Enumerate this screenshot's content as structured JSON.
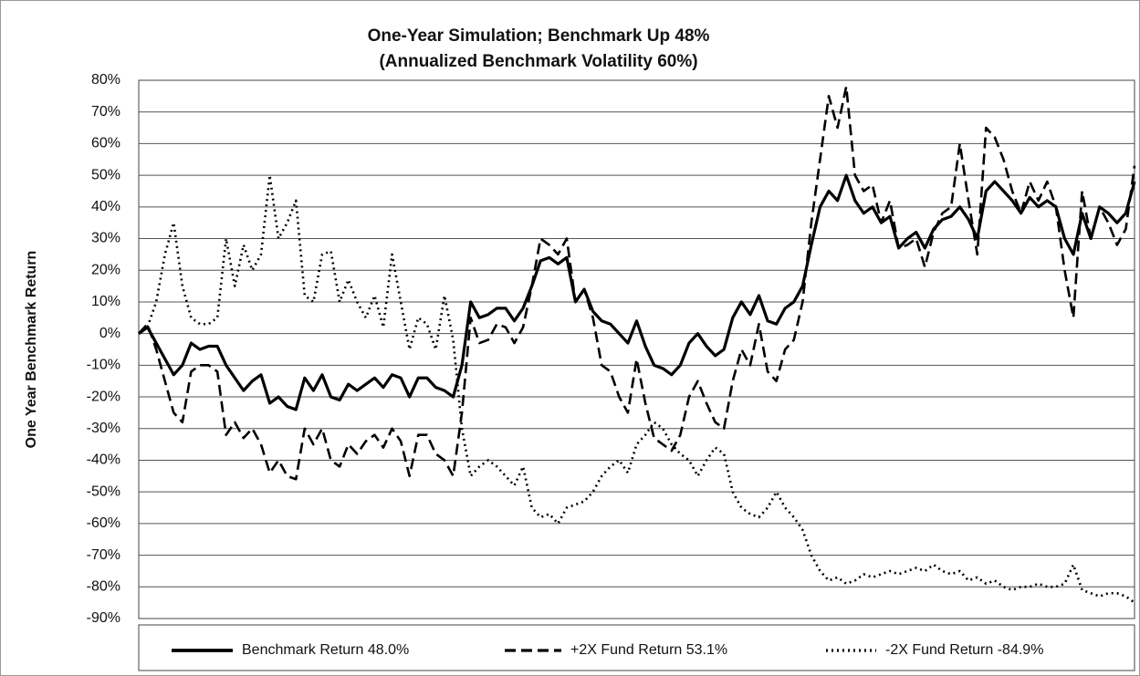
{
  "chart_data": {
    "type": "line",
    "title": "One-Year Simulation; Benchmark Up 48%",
    "subtitle": "(Annualized Benchmark Volatility 60%)",
    "ylabel": "One Year Benchmark Return",
    "ylim": [
      -90,
      80
    ],
    "yticks": [
      {
        "value": 80,
        "label": "80%"
      },
      {
        "value": 70,
        "label": "70%"
      },
      {
        "value": 60,
        "label": "60%"
      },
      {
        "value": 50,
        "label": "50%"
      },
      {
        "value": 40,
        "label": "40%"
      },
      {
        "value": 30,
        "label": "30%"
      },
      {
        "value": 20,
        "label": "20%"
      },
      {
        "value": 10,
        "label": "10%"
      },
      {
        "value": 0,
        "label": "0%"
      },
      {
        "value": -10,
        "label": "-10%"
      },
      {
        "value": -20,
        "label": "-20%"
      },
      {
        "value": -30,
        "label": "-30%"
      },
      {
        "value": -40,
        "label": "-40%"
      },
      {
        "value": -50,
        "label": "-50%"
      },
      {
        "value": -60,
        "label": "-60%"
      },
      {
        "value": -70,
        "label": "-70%"
      },
      {
        "value": -80,
        "label": "-80%"
      },
      {
        "value": -90,
        "label": "-90%"
      }
    ],
    "grid": true,
    "legend": "bottom",
    "series": [
      {
        "name": "Benchmark Return 48.0%",
        "color": "#000000",
        "dash": "solid",
        "values": [
          0,
          2,
          -3,
          -8,
          -13,
          -10,
          -3,
          -5,
          -4,
          -4,
          -10,
          -14,
          -18,
          -15,
          -13,
          -22,
          -20,
          -23,
          -24,
          -14,
          -18,
          -13,
          -20,
          -21,
          -16,
          -18,
          -16,
          -14,
          -17,
          -13,
          -14,
          -20,
          -14,
          -14,
          -17,
          -18,
          -20,
          -10,
          10,
          5,
          6,
          8,
          8,
          4,
          8,
          15,
          23,
          24,
          22,
          24,
          10,
          14,
          7,
          4,
          3,
          0,
          -3,
          4,
          -4,
          -10,
          -11,
          -13,
          -10,
          -3,
          0,
          -4,
          -7,
          -5,
          5,
          10,
          6,
          12,
          4,
          3,
          8,
          10,
          15,
          28,
          40,
          45,
          42,
          50,
          42,
          38,
          40,
          35,
          37,
          27,
          30,
          32,
          27,
          33,
          36,
          37,
          40,
          36,
          30,
          45,
          48,
          45,
          42,
          38,
          43,
          40,
          42,
          40,
          30,
          25,
          38,
          30,
          40,
          38,
          35,
          38,
          48
        ]
      },
      {
        "name": "+2X Fund Return 53.1%",
        "color": "#000000",
        "dash": "dashed",
        "values": [
          0,
          3,
          -5,
          -15,
          -25,
          -28,
          -12,
          -10,
          -10,
          -12,
          -32,
          -28,
          -33,
          -30,
          -35,
          -44,
          -40,
          -45,
          -46,
          -30,
          -35,
          -30,
          -40,
          -42,
          -35,
          -38,
          -34,
          -32,
          -36,
          -30,
          -34,
          -45,
          -32,
          -32,
          -38,
          -40,
          -45,
          -25,
          5,
          -3,
          -2,
          3,
          2,
          -3,
          2,
          15,
          30,
          28,
          25,
          30,
          10,
          14,
          5,
          -10,
          -12,
          -20,
          -25,
          -8,
          -22,
          -33,
          -35,
          -37,
          -32,
          -20,
          -15,
          -22,
          -28,
          -30,
          -15,
          -5,
          -10,
          3,
          -12,
          -15,
          -5,
          -2,
          10,
          35,
          55,
          75,
          65,
          78,
          50,
          45,
          47,
          35,
          42,
          27,
          28,
          30,
          21,
          32,
          38,
          40,
          60,
          42,
          25,
          65,
          62,
          55,
          45,
          38,
          48,
          42,
          48,
          40,
          20,
          5,
          45,
          30,
          40,
          35,
          28,
          33,
          53
        ]
      },
      {
        "name": "-2X Fund Return -84.9%",
        "color": "#000000",
        "dash": "dotted",
        "values": [
          0,
          2,
          10,
          25,
          35,
          15,
          5,
          3,
          3,
          5,
          30,
          15,
          28,
          20,
          25,
          50,
          30,
          35,
          42,
          12,
          10,
          25,
          26,
          10,
          17,
          10,
          5,
          12,
          2,
          25,
          10,
          -5,
          5,
          3,
          -5,
          12,
          -2,
          -30,
          -45,
          -42,
          -40,
          -42,
          -45,
          -48,
          -42,
          -55,
          -58,
          -57,
          -60,
          -55,
          -54,
          -53,
          -50,
          -45,
          -42,
          -40,
          -44,
          -35,
          -32,
          -28,
          -30,
          -35,
          -38,
          -40,
          -45,
          -40,
          -36,
          -38,
          -50,
          -55,
          -57,
          -58,
          -55,
          -50,
          -55,
          -58,
          -62,
          -70,
          -75,
          -78,
          -77,
          -79,
          -78,
          -76,
          -77,
          -76,
          -75,
          -76,
          -75,
          -74,
          -75,
          -73,
          -75,
          -76,
          -75,
          -78,
          -77,
          -79,
          -78,
          -80,
          -81,
          -80,
          -80,
          -79,
          -80,
          -80,
          -79,
          -73,
          -81,
          -82,
          -83,
          -82,
          -82,
          -83,
          -85
        ]
      }
    ]
  }
}
